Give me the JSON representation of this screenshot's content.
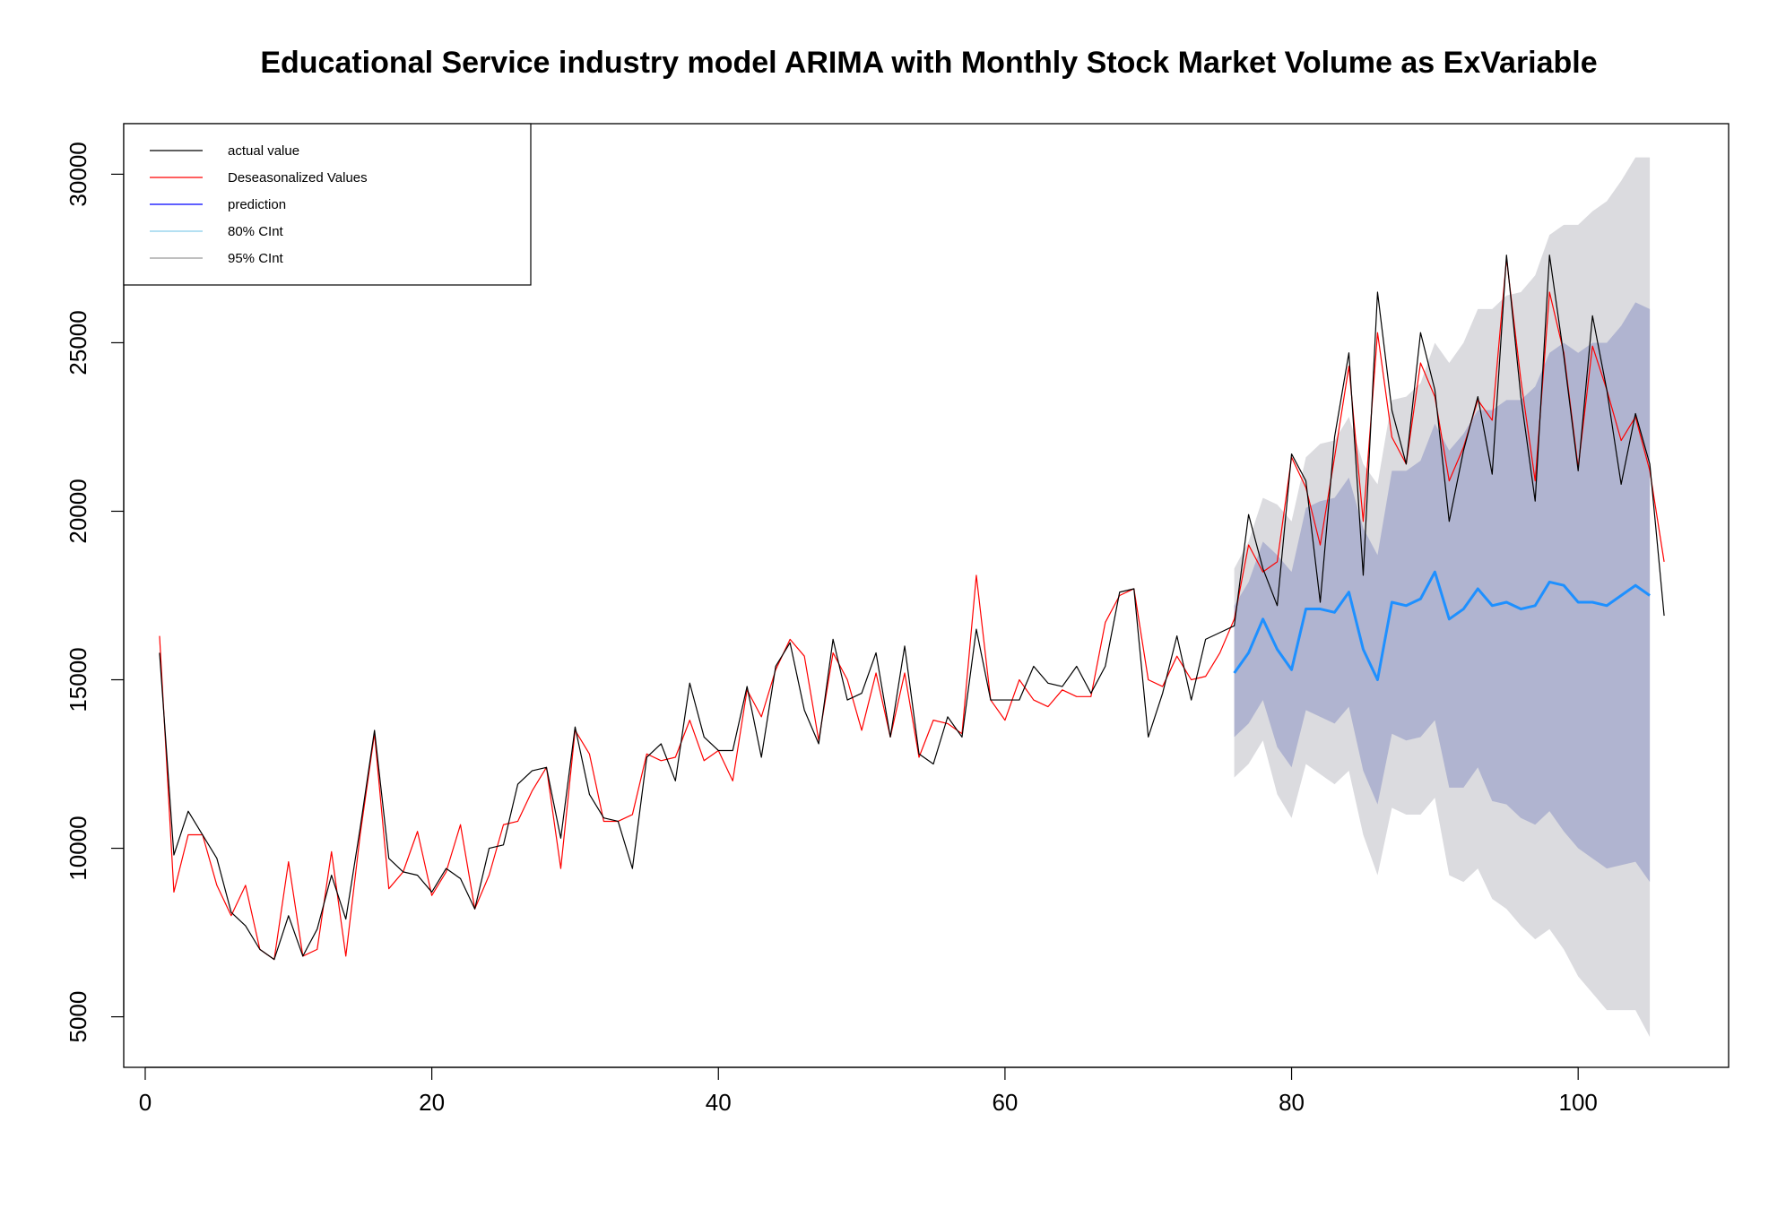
{
  "chart_data": {
    "type": "line",
    "title": "Educational Service industry model ARIMA with Monthly Stock Market Volume as ExVariable",
    "xlabel": "",
    "ylabel": "",
    "xlim": [
      -1.5,
      110.5
    ],
    "ylim": [
      3500,
      31500
    ],
    "x_ticks": [
      0,
      20,
      40,
      60,
      80,
      100
    ],
    "y_ticks": [
      5000,
      10000,
      15000,
      20000,
      25000,
      30000
    ],
    "grid": false,
    "legend_position": "top-left",
    "colors": {
      "actual": "#000000",
      "deseasonalized": "#ff0000",
      "prediction": "#1e90ff",
      "prediction_legend": "#0000ff",
      "ci80_fill": "#b0b4d0",
      "ci95_fill": "#dbdbdf",
      "ci80_legend": "#87ceeb",
      "ci95_legend": "#999999"
    },
    "legend": [
      {
        "key": "actual",
        "label": "actual value"
      },
      {
        "key": "deseasonalized",
        "label": "Deseasonalized Values"
      },
      {
        "key": "prediction",
        "label": "prediction"
      },
      {
        "key": "ci80",
        "label": "80% CInt"
      },
      {
        "key": "ci95",
        "label": "95% CInt"
      }
    ],
    "series": [
      {
        "name": "actual value",
        "key": "actual",
        "x_start": 1,
        "values": [
          15800,
          9800,
          11100,
          10400,
          9700,
          8100,
          7700,
          7000,
          6700,
          8000,
          6800,
          7600,
          9200,
          7900,
          10600,
          13500,
          9700,
          9300,
          9200,
          8700,
          9400,
          9100,
          8200,
          10000,
          10100,
          11900,
          12300,
          12400,
          10300,
          13600,
          11600,
          10900,
          10800,
          9400,
          12700,
          13100,
          12000,
          14900,
          13300,
          12900,
          12900,
          14800,
          12700,
          15400,
          16100,
          14100,
          13100,
          16200,
          14400,
          14600,
          15800,
          13300,
          16000,
          12800,
          12500,
          13900,
          13300,
          16500,
          14400,
          14400,
          14400,
          15400,
          14900,
          14800,
          15400,
          14600,
          15400,
          17600,
          17700,
          13300,
          14600,
          16300,
          14400,
          16200,
          16400,
          16600,
          19900,
          18300,
          17200,
          21700,
          20900,
          17300,
          22200,
          24700,
          18100,
          26500,
          23000,
          21400,
          25300,
          23600,
          19700,
          21800,
          23400,
          21100,
          27600,
          23400,
          20300,
          27600,
          24600,
          21200,
          25800,
          23600,
          20800,
          22900,
          21400,
          16900
        ]
      },
      {
        "name": "Deseasonalized Values",
        "key": "deseasonalized",
        "x_start": 1,
        "values": [
          16300,
          8700,
          10400,
          10400,
          8900,
          8000,
          8900,
          7000,
          6700,
          9600,
          6800,
          7000,
          9900,
          6800,
          10400,
          13400,
          8800,
          9300,
          10500,
          8600,
          9300,
          10700,
          8200,
          9200,
          10700,
          10800,
          11700,
          12400,
          9400,
          13500,
          12800,
          10800,
          10800,
          11000,
          12800,
          12600,
          12700,
          13800,
          12600,
          12900,
          12000,
          14700,
          13900,
          15300,
          16200,
          15700,
          13200,
          15800,
          15000,
          13500,
          15200,
          13300,
          15200,
          12700,
          13800,
          13700,
          13400,
          18100,
          14400,
          13800,
          15000,
          14400,
          14200,
          14700,
          14500,
          14500,
          16700,
          17500,
          17700,
          15000,
          14800,
          15700,
          15000,
          15100,
          15800,
          16800,
          19000,
          18200,
          18500,
          21600,
          20700,
          19000,
          21600,
          24300,
          19700,
          25300,
          22200,
          21400,
          24400,
          23400,
          20900,
          21900,
          23300,
          22700,
          27500,
          23900,
          20900,
          26500,
          24700,
          21300,
          24900,
          23600,
          22100,
          22800,
          21200,
          18500
        ]
      },
      {
        "name": "prediction",
        "key": "prediction",
        "x_start": 76,
        "values": [
          15200,
          15800,
          16800,
          15900,
          15300,
          17100,
          17100,
          17000,
          17600,
          15900,
          15000,
          17300,
          17200,
          17400,
          18200,
          16800,
          17100,
          17700,
          17200,
          17300,
          17100,
          17200,
          17900,
          17800,
          17300,
          17300,
          17200,
          17500,
          17800,
          17500
        ]
      }
    ],
    "intervals": [
      {
        "name": "80% CInt",
        "key": "ci80",
        "x_start": 76,
        "lower": [
          13300,
          13700,
          14400,
          13000,
          12400,
          14100,
          13900,
          13700,
          14200,
          12300,
          11300,
          13400,
          13200,
          13300,
          13800,
          11800,
          11800,
          12400,
          11400,
          11300,
          10900,
          10700,
          11100,
          10500,
          10000,
          9700,
          9400,
          9500,
          9600,
          9000
        ],
        "upper": [
          17200,
          17900,
          19100,
          18700,
          18200,
          20100,
          20300,
          20400,
          21000,
          19500,
          18700,
          21200,
          21200,
          21500,
          22600,
          21800,
          22300,
          23000,
          23000,
          23300,
          23300,
          23700,
          24700,
          25000,
          24700,
          25000,
          25000,
          25500,
          26200,
          26000
        ]
      },
      {
        "name": "95% CInt",
        "key": "ci95",
        "x_start": 76,
        "lower": [
          12100,
          12500,
          13200,
          11600,
          10900,
          12500,
          12200,
          11900,
          12300,
          10400,
          9200,
          11200,
          11000,
          11000,
          11500,
          9200,
          9000,
          9400,
          8500,
          8200,
          7700,
          7300,
          7600,
          7000,
          6200,
          5700,
          5200,
          5200,
          5200,
          4400
        ],
        "upper": [
          18300,
          19100,
          20400,
          20200,
          19700,
          21600,
          22000,
          22100,
          22800,
          21400,
          20800,
          23300,
          23400,
          23800,
          25000,
          24400,
          25000,
          26000,
          26000,
          26400,
          26500,
          27000,
          28200,
          28500,
          28500,
          28900,
          29200,
          29800,
          30500,
          30500
        ]
      }
    ]
  }
}
